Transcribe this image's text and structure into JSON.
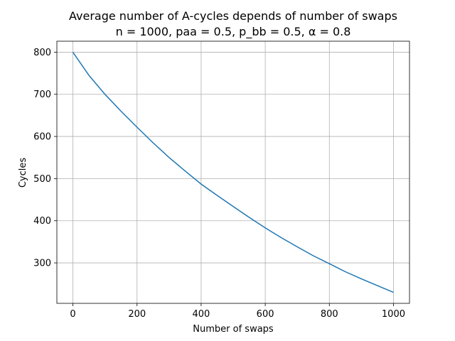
{
  "chart_data": {
    "type": "line",
    "title": "Average number of A-cycles depends of number of swaps",
    "subtitle": "n = 1000, paa = 0.5, p_bb = 0.5, α = 0.8",
    "xlabel": "Number of swaps",
    "ylabel": "Cycles",
    "xlim": [
      -50,
      1050
    ],
    "ylim": [
      204,
      826
    ],
    "xticks": [
      0,
      200,
      400,
      600,
      800,
      1000
    ],
    "yticks": [
      300,
      400,
      500,
      600,
      700,
      800
    ],
    "xtick_labels": [
      "0",
      "200",
      "400",
      "600",
      "800",
      "1000"
    ],
    "ytick_labels": [
      "300",
      "400",
      "500",
      "600",
      "700",
      "800"
    ],
    "grid": true,
    "series": [
      {
        "color": "#1f77b4",
        "x": [
          0,
          50,
          100,
          150,
          200,
          250,
          300,
          350,
          400,
          450,
          500,
          550,
          600,
          650,
          700,
          750,
          800,
          850,
          900,
          950,
          1000
        ],
        "values": [
          800,
          745,
          700,
          660,
          622,
          585,
          550,
          518,
          487,
          460,
          434,
          408,
          383,
          360,
          338,
          317,
          298,
          279,
          262,
          246,
          230
        ]
      }
    ]
  }
}
